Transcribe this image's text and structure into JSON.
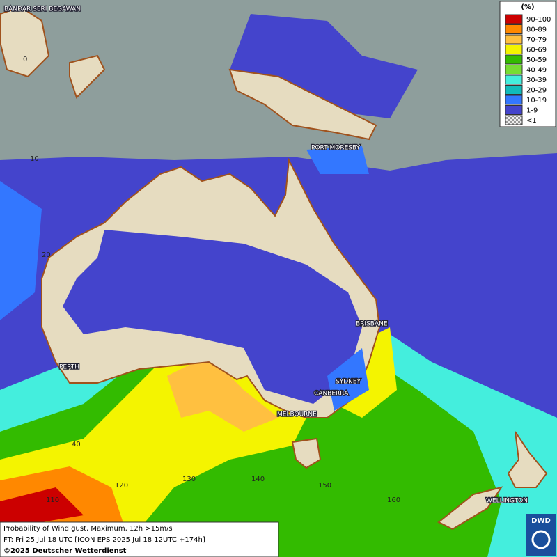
{
  "map": {
    "cities": [
      "BANDAR SERI BEGAWAN",
      "PORT MORESBY",
      "BRISBANE",
      "PERTH",
      "SYDNEY",
      "CANBERRA",
      "MELBOURNE",
      "WELLINGTON"
    ],
    "lat_labels": [
      "0",
      "10",
      "20",
      "40"
    ],
    "lon_labels": [
      "110",
      "120",
      "130",
      "140",
      "150",
      "160"
    ],
    "legend": {
      "title": "(%)",
      "items": [
        {
          "label": "90-100",
          "color": "#cc0000"
        },
        {
          "label": "80-89",
          "color": "#ff8800"
        },
        {
          "label": "70-79",
          "color": "#ffc040"
        },
        {
          "label": "60-69",
          "color": "#f4f400"
        },
        {
          "label": "50-59",
          "color": "#33bb00"
        },
        {
          "label": "40-49",
          "color": "#77dd33"
        },
        {
          "label": "30-39",
          "color": "#44eedd"
        },
        {
          "label": "20-29",
          "color": "#11bbbb"
        },
        {
          "label": "10-19",
          "color": "#3377ff"
        },
        {
          "label": "1-9",
          "color": "#4444cc"
        },
        {
          "label": "<1",
          "color": "#bbbbbb"
        }
      ]
    },
    "footer": {
      "lines": [
        "Probability of Wind gust, Maximum, 12h >15m/s",
        "FT: Fri 25 Jul 18 UTC [ICON EPS 2025 Jul 18 12UTC +174h]"
      ],
      "copyright": "©2025 Deutscher Wetterdienst"
    },
    "logo": "DWD"
  }
}
